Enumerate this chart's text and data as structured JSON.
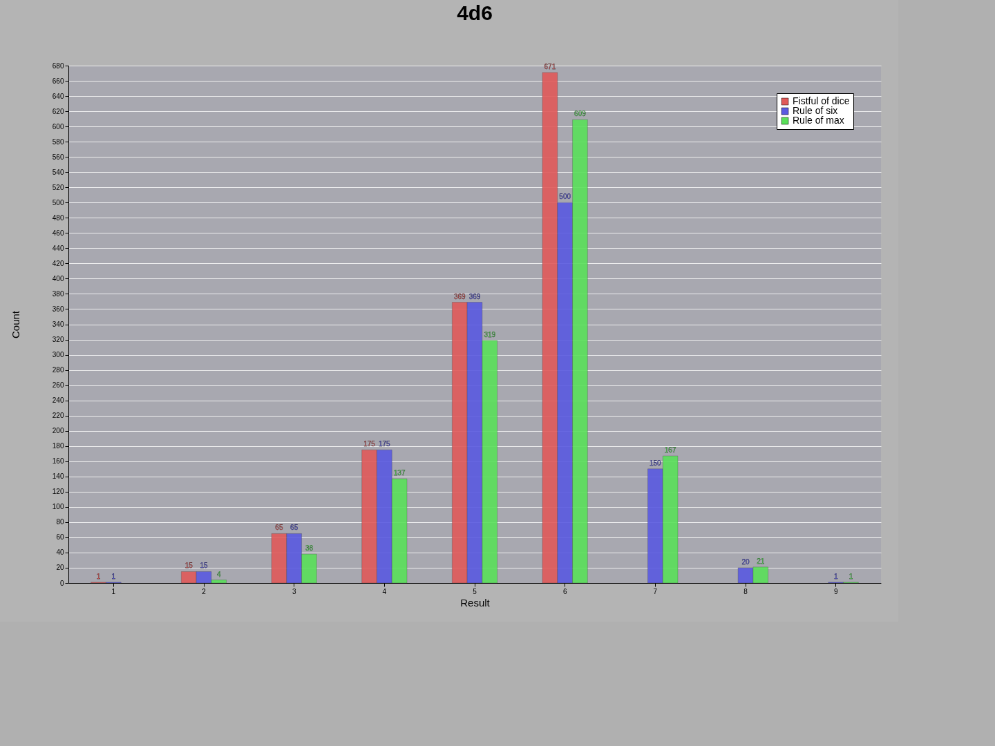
{
  "chart_data": {
    "type": "bar",
    "title": "4d6",
    "xlabel": "Result",
    "ylabel": "Count",
    "categories": [
      "1",
      "2",
      "3",
      "4",
      "5",
      "6",
      "7",
      "8",
      "9"
    ],
    "series": [
      {
        "name": "Fistful of dice",
        "color": "#e05a5a",
        "values": [
          1,
          15,
          65,
          175,
          369,
          671,
          null,
          null,
          null
        ]
      },
      {
        "name": "Rule of six",
        "color": "#5a5ae0",
        "values": [
          1,
          15,
          65,
          175,
          369,
          500,
          150,
          20,
          1
        ]
      },
      {
        "name": "Rule of max",
        "color": "#5ae05a",
        "values": [
          null,
          4,
          38,
          137,
          319,
          609,
          167,
          21,
          1
        ]
      }
    ],
    "ylim": [
      0,
      680
    ],
    "yticks": [
      0,
      20,
      40,
      60,
      80,
      100,
      120,
      140,
      160,
      180,
      200,
      220,
      240,
      260,
      280,
      300,
      320,
      340,
      360,
      380,
      400,
      420,
      440,
      460,
      480,
      500,
      520,
      540,
      560,
      580,
      600,
      620,
      640,
      660,
      680
    ],
    "grid": "y",
    "legend": "top right",
    "data_labels": true
  }
}
